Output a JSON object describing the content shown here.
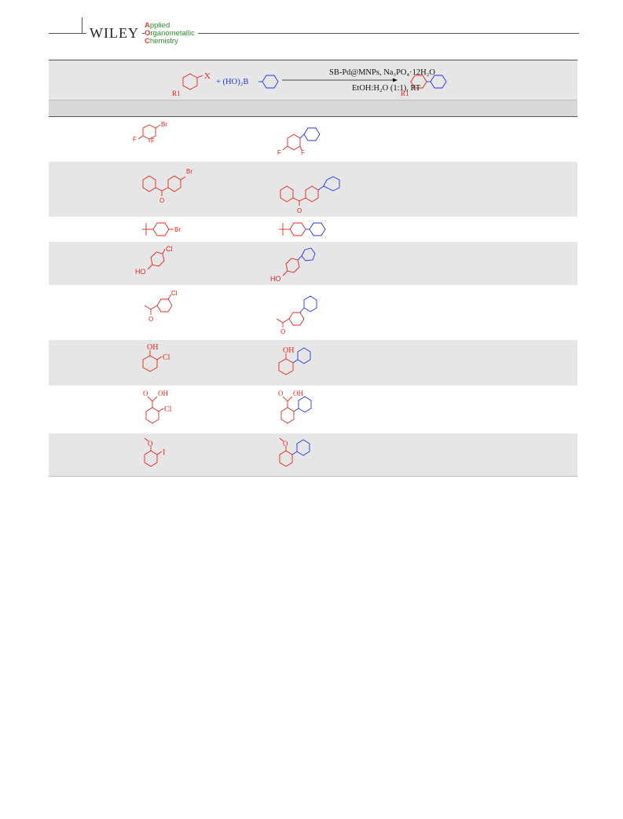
{
  "header": {
    "publisher": "WILEY",
    "journal_line1": "Applied",
    "journal_line2": "Organometallic",
    "journal_line3": "Chemistry"
  },
  "scheme": {
    "reagent": "+ (HO)₂B",
    "conditions_top": "SB-Pd@MNPs, Na₃PO₄·12H₂O",
    "conditions_bottom": "EtOH:H₂O (1:1), RT",
    "halide_label": "X",
    "r1_label": "R1"
  },
  "entries": [
    {
      "substrate_labels": [
        "Br",
        "F",
        "F"
      ],
      "product_labels": [
        "F",
        "F"
      ]
    },
    {
      "substrate_labels": [
        "Br",
        "O"
      ],
      "product_labels": [
        "O"
      ]
    },
    {
      "substrate_labels": [
        "Br"
      ],
      "product_labels": []
    },
    {
      "substrate_labels": [
        "Cl",
        "HO"
      ],
      "product_labels": [
        "HO"
      ]
    },
    {
      "substrate_labels": [
        "Cl",
        "O"
      ],
      "product_labels": [
        "O"
      ]
    },
    {
      "substrate_labels": [
        "OH",
        "Cl"
      ],
      "product_labels": [
        "OH"
      ]
    },
    {
      "substrate_labels": [
        "O",
        "OH",
        "Cl"
      ],
      "product_labels": [
        "O",
        "OH"
      ]
    },
    {
      "substrate_labels": [
        "O",
        "I"
      ],
      "product_labels": [
        "O"
      ]
    }
  ],
  "colors": {
    "substrate": "#e8231b",
    "boronic": "#2233ee",
    "text": "#111111",
    "shade": "#e6e6e6"
  }
}
